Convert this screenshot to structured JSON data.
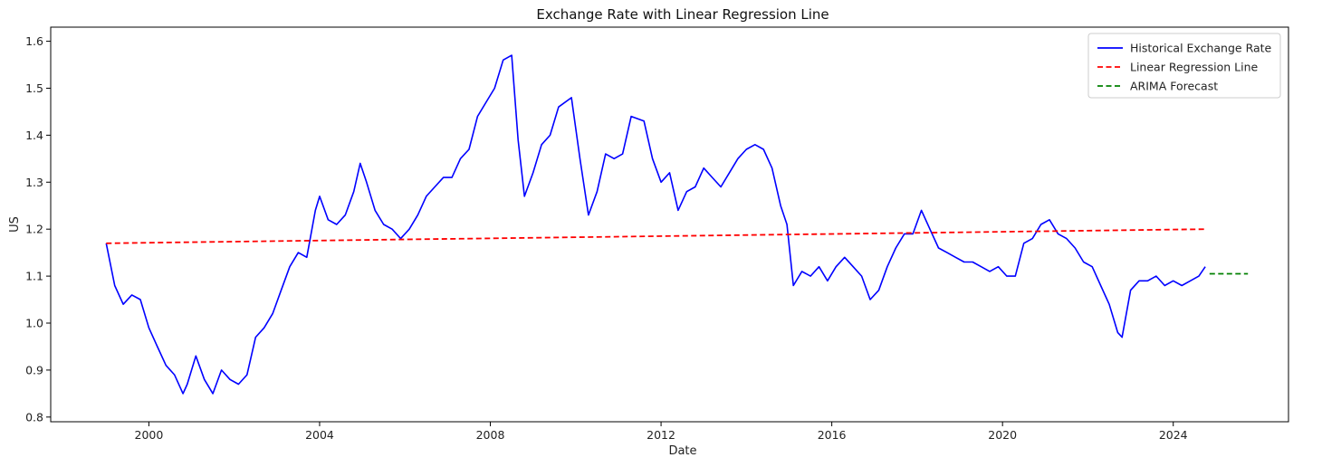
{
  "chart_data": {
    "type": "line",
    "title": "Exchange Rate with Linear Regression Line",
    "xlabel": "Date",
    "ylabel": "US",
    "xlim": [
      1997.7,
      2026.7
    ],
    "ylim": [
      0.79,
      1.63
    ],
    "x_ticks": [
      2000,
      2004,
      2008,
      2012,
      2016,
      2020,
      2024
    ],
    "x_tick_labels": [
      "2000",
      "2004",
      "2008",
      "2012",
      "2016",
      "2020",
      "2024"
    ],
    "y_ticks": [
      0.8,
      0.9,
      1.0,
      1.1,
      1.2,
      1.3,
      1.4,
      1.5,
      1.6
    ],
    "y_tick_labels": [
      "0.8",
      "0.9",
      "1.0",
      "1.1",
      "1.2",
      "1.3",
      "1.4",
      "1.5",
      "1.6"
    ],
    "legend_position": "top-right",
    "grid": false,
    "series": [
      {
        "name": "Historical Exchange Rate",
        "color": "#0000ff",
        "style": "solid",
        "x": [
          1999.0,
          1999.2,
          1999.4,
          1999.6,
          1999.8,
          2000.0,
          2000.2,
          2000.4,
          2000.6,
          2000.8,
          2000.9,
          2001.1,
          2001.3,
          2001.5,
          2001.7,
          2001.9,
          2002.1,
          2002.3,
          2002.5,
          2002.7,
          2002.9,
          2003.1,
          2003.3,
          2003.5,
          2003.7,
          2003.9,
          2004.0,
          2004.2,
          2004.4,
          2004.6,
          2004.8,
          2004.95,
          2005.1,
          2005.3,
          2005.5,
          2005.7,
          2005.9,
          2006.1,
          2006.3,
          2006.5,
          2006.7,
          2006.9,
          2007.1,
          2007.3,
          2007.5,
          2007.7,
          2007.9,
          2008.1,
          2008.3,
          2008.5,
          2008.65,
          2008.8,
          2009.0,
          2009.2,
          2009.4,
          2009.6,
          2009.9,
          2010.1,
          2010.3,
          2010.5,
          2010.7,
          2010.9,
          2011.1,
          2011.3,
          2011.6,
          2011.8,
          2012.0,
          2012.2,
          2012.4,
          2012.6,
          2012.8,
          2013.0,
          2013.2,
          2013.4,
          2013.6,
          2013.8,
          2014.0,
          2014.2,
          2014.4,
          2014.6,
          2014.8,
          2014.95,
          2015.1,
          2015.3,
          2015.5,
          2015.7,
          2015.9,
          2016.1,
          2016.3,
          2016.5,
          2016.7,
          2016.9,
          2017.1,
          2017.3,
          2017.5,
          2017.7,
          2017.9,
          2018.1,
          2018.3,
          2018.5,
          2018.7,
          2018.9,
          2019.1,
          2019.3,
          2019.5,
          2019.7,
          2019.9,
          2020.1,
          2020.3,
          2020.5,
          2020.7,
          2020.9,
          2021.1,
          2021.3,
          2021.5,
          2021.7,
          2021.9,
          2022.1,
          2022.3,
          2022.5,
          2022.7,
          2022.8,
          2023.0,
          2023.2,
          2023.4,
          2023.6,
          2023.8,
          2024.0,
          2024.2,
          2024.4,
          2024.6,
          2024.75
        ],
        "y": [
          1.17,
          1.08,
          1.04,
          1.06,
          1.05,
          0.99,
          0.95,
          0.91,
          0.89,
          0.85,
          0.87,
          0.93,
          0.88,
          0.85,
          0.9,
          0.88,
          0.87,
          0.89,
          0.97,
          0.99,
          1.02,
          1.07,
          1.12,
          1.15,
          1.14,
          1.24,
          1.27,
          1.22,
          1.21,
          1.23,
          1.28,
          1.34,
          1.3,
          1.24,
          1.21,
          1.2,
          1.18,
          1.2,
          1.23,
          1.27,
          1.29,
          1.31,
          1.31,
          1.35,
          1.37,
          1.44,
          1.47,
          1.5,
          1.56,
          1.57,
          1.39,
          1.27,
          1.32,
          1.38,
          1.4,
          1.46,
          1.48,
          1.35,
          1.23,
          1.28,
          1.36,
          1.35,
          1.36,
          1.44,
          1.43,
          1.35,
          1.3,
          1.32,
          1.24,
          1.28,
          1.29,
          1.33,
          1.31,
          1.29,
          1.32,
          1.35,
          1.37,
          1.38,
          1.37,
          1.33,
          1.25,
          1.21,
          1.08,
          1.11,
          1.1,
          1.12,
          1.09,
          1.12,
          1.14,
          1.12,
          1.1,
          1.05,
          1.07,
          1.12,
          1.16,
          1.19,
          1.19,
          1.24,
          1.2,
          1.16,
          1.15,
          1.14,
          1.13,
          1.13,
          1.12,
          1.11,
          1.12,
          1.1,
          1.1,
          1.17,
          1.18,
          1.21,
          1.22,
          1.19,
          1.18,
          1.16,
          1.13,
          1.12,
          1.08,
          1.04,
          0.98,
          0.97,
          1.07,
          1.09,
          1.09,
          1.1,
          1.08,
          1.09,
          1.08,
          1.09,
          1.1,
          1.12
        ]
      },
      {
        "name": "Linear Regression Line",
        "color": "#ff0000",
        "style": "dashed",
        "x": [
          1999.0,
          2024.75
        ],
        "y": [
          1.17,
          1.2
        ]
      },
      {
        "name": "ARIMA Forecast",
        "color": "#008000",
        "style": "dashed",
        "x": [
          2024.85,
          2025.75
        ],
        "y": [
          1.105,
          1.105
        ]
      }
    ]
  }
}
